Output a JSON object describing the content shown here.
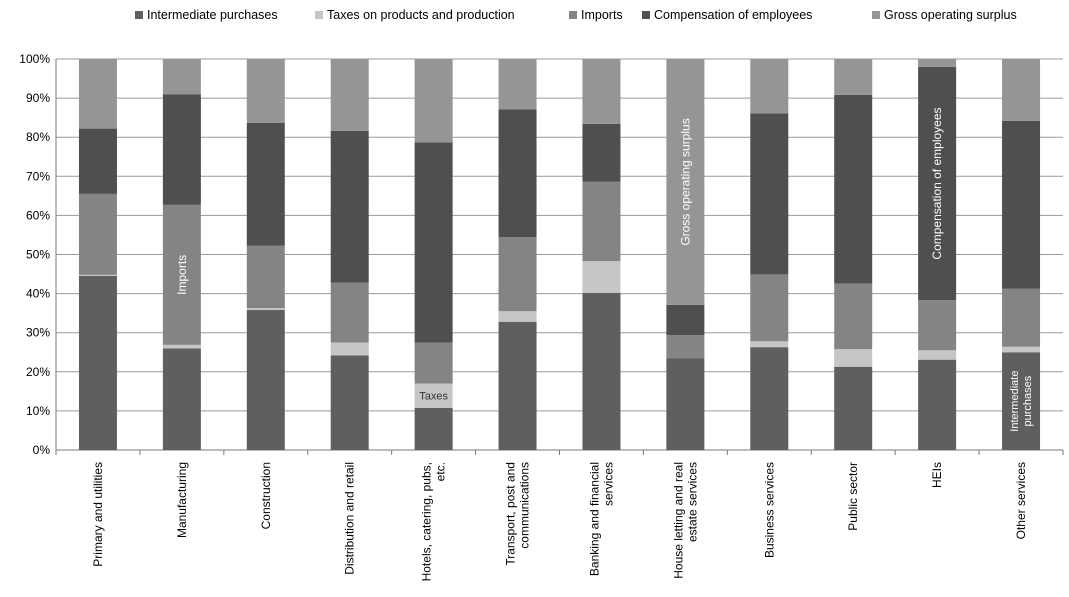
{
  "chart_data": {
    "type": "bar",
    "stacked": true,
    "percent": true,
    "categories": [
      "Primary and utilities",
      "Manufacturing",
      "Construction",
      "Distribution and retail",
      "Hotels, catering, pubs, etc.",
      "Transport, post and communications",
      "Banking and financial services",
      "House letting and real estate services",
      "Business services",
      "Public sector",
      "HEIs",
      "Other services"
    ],
    "category_lines": [
      [
        "Primary and utilities"
      ],
      [
        "Manufacturing"
      ],
      [
        "Construction"
      ],
      [
        "Distribution and retail"
      ],
      [
        "Hotels, catering, pubs,",
        "etc."
      ],
      [
        "Transport, post and",
        "communications"
      ],
      [
        "Banking and financial",
        "services"
      ],
      [
        "House letting and real",
        "estate services"
      ],
      [
        "Business services"
      ],
      [
        "Public sector"
      ],
      [
        "HEIs"
      ],
      [
        "Other services"
      ]
    ],
    "series": [
      {
        "name": "Intermediate purchases",
        "color": "#5f5f5f",
        "values": [
          44.5,
          26,
          35.8,
          24.2,
          10.8,
          32.8,
          40.2,
          23.5,
          26.3,
          21.3,
          23.1,
          25
        ]
      },
      {
        "name": "Taxes on products and production",
        "color": "#c6c6c6",
        "values": [
          0.3,
          0.9,
          0.5,
          3.3,
          6.2,
          2.7,
          8.1,
          0,
          1.5,
          4.5,
          2.4,
          1.4
        ]
      },
      {
        "name": "Imports",
        "color": "#848484",
        "values": [
          20.7,
          35.8,
          16,
          15.3,
          10.5,
          18.9,
          20.3,
          5.9,
          17.1,
          16.8,
          12.8,
          14.9
        ]
      },
      {
        "name": "Compensation of employees",
        "color": "#4f4f4f",
        "values": [
          16.7,
          28.3,
          31.4,
          38.8,
          51.2,
          32.7,
          14.8,
          7.7,
          41.2,
          48.2,
          59.7,
          42.9
        ]
      },
      {
        "name": "Gross  operating surplus",
        "color": "#959595",
        "values": [
          17.8,
          9,
          16.3,
          18.4,
          21.3,
          12.9,
          16.6,
          62.9,
          13.9,
          9.2,
          2,
          15.8
        ]
      }
    ],
    "ylim": [
      0,
      100
    ],
    "yticks": [
      0,
      10,
      20,
      30,
      40,
      50,
      60,
      70,
      80,
      90,
      100
    ],
    "ytick_labels": [
      "0%",
      "10%",
      "20%",
      "30%",
      "40%",
      "50%",
      "60%",
      "70%",
      "80%",
      "90%",
      "100%"
    ],
    "title": "",
    "xlabel": "",
    "ylabel": "",
    "grid": true,
    "legend_position": "top",
    "annotations": [
      {
        "text": "Imports",
        "category_index": 1,
        "series_index": 2,
        "rotate": -90,
        "color": "#ffffff"
      },
      {
        "text": "Taxes",
        "category_index": 4,
        "series_index": 1,
        "rotate": 0,
        "color": "#333333"
      },
      {
        "text": "Gross  operating surplus",
        "category_index": 7,
        "series_index": 4,
        "rotate": -90,
        "color": "#ffffff"
      },
      {
        "text": "Compensation of employees",
        "category_index": 10,
        "series_index": 3,
        "rotate": -90,
        "color": "#ffffff"
      },
      {
        "text": "Intermediate",
        "text2": "purchases",
        "category_index": 11,
        "series_index": 0,
        "rotate": -90,
        "color": "#ffffff"
      }
    ]
  }
}
